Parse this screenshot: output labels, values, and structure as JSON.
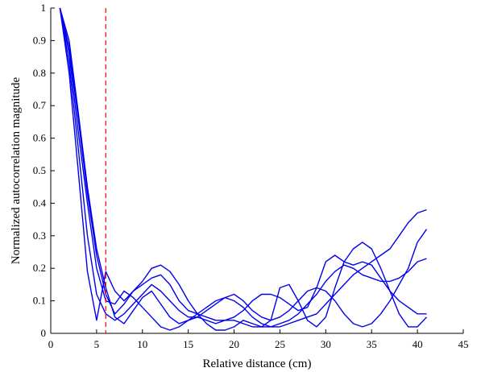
{
  "chart_data": {
    "type": "line",
    "title": "",
    "xlabel": "Relative distance (cm)",
    "ylabel": "Normalized autocorrelation magnitude",
    "xlim": [
      0,
      45
    ],
    "ylim": [
      0,
      1
    ],
    "xticks": [
      0,
      5,
      10,
      15,
      20,
      25,
      30,
      35,
      40,
      45
    ],
    "yticks": [
      0,
      0.1,
      0.2,
      0.3,
      0.4,
      0.5,
      0.6,
      0.7,
      0.8,
      0.9,
      1
    ],
    "ytick_labels": [
      "0",
      "0.1",
      "0.2",
      "0.3",
      "0.4",
      "0.5",
      "0.6",
      "0.7",
      "0.8",
      "0.9",
      "1"
    ],
    "grid": false,
    "legend": "none",
    "line_color": "#0000ee",
    "reference_line": {
      "x": 6,
      "color": "#ff0000",
      "style": "dashed"
    },
    "series": [
      {
        "x": [
          1,
          2,
          3,
          4,
          5,
          6,
          7,
          8,
          9,
          10,
          11,
          12,
          13,
          14,
          15,
          16,
          17,
          18,
          19,
          20,
          21,
          22,
          23,
          24,
          25,
          26,
          27,
          28,
          29,
          30,
          31,
          32,
          33,
          34,
          35,
          36,
          37,
          38,
          39,
          40,
          41
        ],
        "values": [
          1,
          0.9,
          0.68,
          0.45,
          0.26,
          0.14,
          0.05,
          0.03,
          0.07,
          0.11,
          0.13,
          0.09,
          0.05,
          0.03,
          0.04,
          0.05,
          0.04,
          0.03,
          0.04,
          0.04,
          0.03,
          0.02,
          0.02,
          0.02,
          0.03,
          0.04,
          0.06,
          0.09,
          0.12,
          0.16,
          0.19,
          0.21,
          0.2,
          0.18,
          0.17,
          0.16,
          0.16,
          0.17,
          0.19,
          0.22,
          0.23
        ]
      },
      {
        "x": [
          1,
          2,
          3,
          4,
          5,
          6,
          7,
          8,
          9,
          10,
          11,
          12,
          13,
          14,
          15,
          16,
          17,
          18,
          19,
          20,
          21,
          22,
          23,
          24,
          25,
          26,
          27,
          28,
          29,
          30,
          31,
          32,
          33,
          34,
          35,
          36,
          37,
          38,
          39,
          40,
          41
        ],
        "values": [
          1,
          0.86,
          0.62,
          0.4,
          0.2,
          0.1,
          0.09,
          0.13,
          0.11,
          0.08,
          0.05,
          0.02,
          0.01,
          0.02,
          0.04,
          0.06,
          0.08,
          0.1,
          0.11,
          0.1,
          0.08,
          0.05,
          0.03,
          0.02,
          0.02,
          0.03,
          0.04,
          0.05,
          0.06,
          0.09,
          0.12,
          0.15,
          0.18,
          0.2,
          0.22,
          0.24,
          0.26,
          0.3,
          0.34,
          0.37,
          0.38
        ]
      },
      {
        "x": [
          1,
          2,
          3,
          4,
          5,
          6,
          7,
          8,
          9,
          10,
          11,
          12,
          13,
          14,
          15,
          16,
          17,
          18,
          19,
          20,
          21,
          22,
          23,
          24,
          25,
          26,
          27,
          28,
          29,
          30,
          31,
          32,
          33,
          34,
          35,
          36,
          37,
          38,
          39,
          40,
          41
        ],
        "values": [
          1,
          0.83,
          0.57,
          0.3,
          0.12,
          0.06,
          0.04,
          0.06,
          0.09,
          0.12,
          0.15,
          0.13,
          0.1,
          0.07,
          0.05,
          0.05,
          0.07,
          0.09,
          0.11,
          0.12,
          0.1,
          0.07,
          0.05,
          0.04,
          0.05,
          0.07,
          0.1,
          0.13,
          0.14,
          0.13,
          0.1,
          0.06,
          0.03,
          0.02,
          0.03,
          0.06,
          0.1,
          0.15,
          0.2,
          0.28,
          0.32
        ]
      },
      {
        "x": [
          1,
          2,
          3,
          4,
          5,
          6,
          7,
          8,
          9,
          10,
          11,
          12,
          13,
          14,
          15,
          16,
          17,
          18,
          19,
          20,
          21,
          22,
          23,
          24,
          25,
          26,
          27,
          28,
          29,
          30,
          31,
          32,
          33,
          34,
          35,
          36,
          37,
          38,
          39,
          40,
          41
        ],
        "values": [
          1,
          0.8,
          0.5,
          0.19,
          0.04,
          0.19,
          0.13,
          0.1,
          0.13,
          0.15,
          0.17,
          0.18,
          0.15,
          0.1,
          0.07,
          0.06,
          0.05,
          0.04,
          0.04,
          0.05,
          0.07,
          0.1,
          0.12,
          0.12,
          0.11,
          0.09,
          0.07,
          0.08,
          0.14,
          0.22,
          0.24,
          0.22,
          0.21,
          0.22,
          0.21,
          0.17,
          0.13,
          0.1,
          0.08,
          0.06,
          0.06
        ]
      },
      {
        "x": [
          1,
          2,
          3,
          4,
          5,
          6,
          7,
          8,
          9,
          10,
          11,
          12,
          13,
          14,
          15,
          16,
          17,
          18,
          19,
          20,
          21,
          22,
          23,
          24,
          25,
          26,
          27,
          28,
          29,
          30,
          31,
          32,
          33,
          34,
          35,
          36,
          37,
          38,
          39,
          40,
          41
        ],
        "values": [
          1,
          0.88,
          0.66,
          0.43,
          0.24,
          0.12,
          0.06,
          0.09,
          0.13,
          0.16,
          0.2,
          0.21,
          0.19,
          0.15,
          0.1,
          0.06,
          0.03,
          0.01,
          0.01,
          0.02,
          0.04,
          0.03,
          0.02,
          0.04,
          0.14,
          0.15,
          0.1,
          0.04,
          0.02,
          0.05,
          0.14,
          0.22,
          0.26,
          0.28,
          0.26,
          0.2,
          0.13,
          0.06,
          0.02,
          0.02,
          0.05
        ]
      }
    ]
  }
}
